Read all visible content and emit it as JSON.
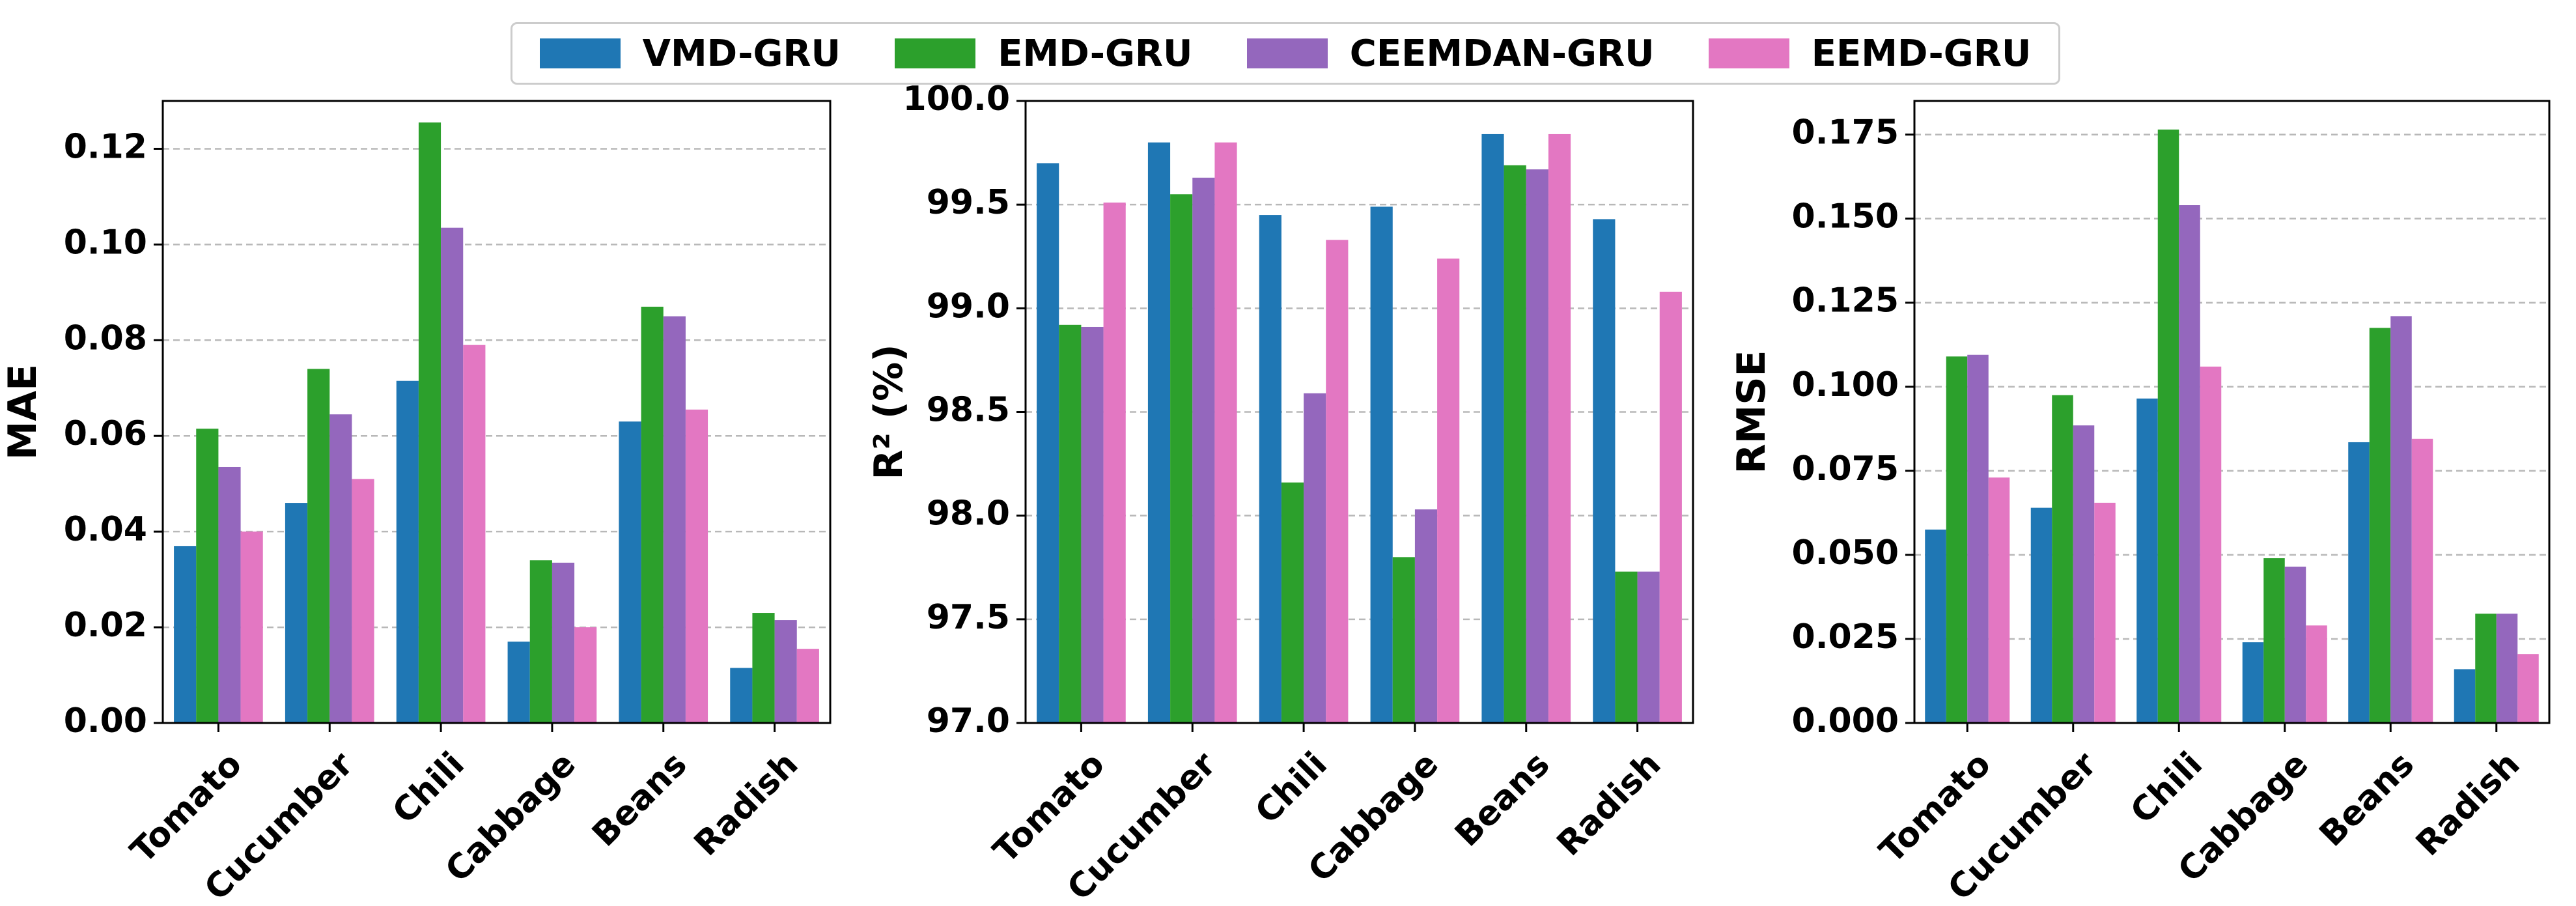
{
  "series_colors": {
    "VMD-GRU": "#1f77b4",
    "EMD-GRU": "#2ca02c",
    "CEEMDAN-GRU": "#9467bd",
    "EEMD-GRU": "#e377c2"
  },
  "legend": [
    "VMD-GRU",
    "EMD-GRU",
    "CEEMDAN-GRU",
    "EEMD-GRU"
  ],
  "chart_data": [
    {
      "type": "bar",
      "ylabel": "MAE",
      "ylim": [
        0,
        0.13
      ],
      "yticks": [
        "0.00",
        "0.02",
        "0.04",
        "0.06",
        "0.08",
        "0.10",
        "0.12"
      ],
      "yticks_values": [
        0,
        0.02,
        0.04,
        0.06,
        0.08,
        0.1,
        0.12
      ],
      "grid": "y-dashed",
      "categories": [
        "Tomato",
        "Cucumber",
        "Chili",
        "Cabbage",
        "Beans",
        "Radish"
      ],
      "series": [
        {
          "name": "VMD-GRU",
          "values": [
            0.037,
            0.046,
            0.0715,
            0.017,
            0.063,
            0.0115
          ]
        },
        {
          "name": "EMD-GRU",
          "values": [
            0.0615,
            0.074,
            0.1255,
            0.034,
            0.087,
            0.023
          ]
        },
        {
          "name": "CEEMDAN-GRU",
          "values": [
            0.0535,
            0.0645,
            0.1035,
            0.0335,
            0.085,
            0.0215
          ]
        },
        {
          "name": "EEMD-GRU",
          "values": [
            0.04,
            0.051,
            0.079,
            0.02,
            0.0655,
            0.0155
          ]
        }
      ]
    },
    {
      "type": "bar",
      "ylabel": "R² (%)",
      "ylim": [
        97.0,
        100.0
      ],
      "yticks": [
        "97.0",
        "97.5",
        "98.0",
        "98.5",
        "99.0",
        "99.5",
        "100.0"
      ],
      "yticks_values": [
        97.0,
        97.5,
        98.0,
        98.5,
        99.0,
        99.5,
        100.0
      ],
      "grid": "y-dashed",
      "categories": [
        "Tomato",
        "Cucumber",
        "Chili",
        "Cabbage",
        "Beans",
        "Radish"
      ],
      "series": [
        {
          "name": "VMD-GRU",
          "values": [
            99.7,
            99.8,
            99.45,
            99.49,
            99.84,
            99.43
          ]
        },
        {
          "name": "EMD-GRU",
          "values": [
            98.92,
            99.55,
            98.16,
            97.8,
            99.69,
            97.73
          ]
        },
        {
          "name": "CEEMDAN-GRU",
          "values": [
            98.91,
            99.63,
            98.59,
            98.03,
            99.67,
            97.73
          ]
        },
        {
          "name": "EEMD-GRU",
          "values": [
            99.51,
            99.8,
            99.33,
            99.24,
            99.84,
            99.08
          ]
        }
      ]
    },
    {
      "type": "bar",
      "ylabel": "RMSE",
      "ylim": [
        0,
        0.185
      ],
      "yticks": [
        "0.000",
        "0.025",
        "0.050",
        "0.075",
        "0.100",
        "0.125",
        "0.150",
        "0.175"
      ],
      "yticks_values": [
        0,
        0.025,
        0.05,
        0.075,
        0.1,
        0.125,
        0.15,
        0.175
      ],
      "grid": "y-dashed",
      "categories": [
        "Tomato",
        "Cucumber",
        "Chili",
        "Cabbage",
        "Beans",
        "Radish"
      ],
      "series": [
        {
          "name": "VMD-GRU",
          "values": [
            0.0575,
            0.064,
            0.0965,
            0.024,
            0.0835,
            0.016
          ]
        },
        {
          "name": "EMD-GRU",
          "values": [
            0.109,
            0.0975,
            0.1765,
            0.049,
            0.1175,
            0.0325
          ]
        },
        {
          "name": "CEEMDAN-GRU",
          "values": [
            0.1095,
            0.0885,
            0.154,
            0.0465,
            0.121,
            0.0325
          ]
        },
        {
          "name": "EEMD-GRU",
          "values": [
            0.073,
            0.0655,
            0.106,
            0.029,
            0.0845,
            0.0205
          ]
        }
      ]
    }
  ]
}
